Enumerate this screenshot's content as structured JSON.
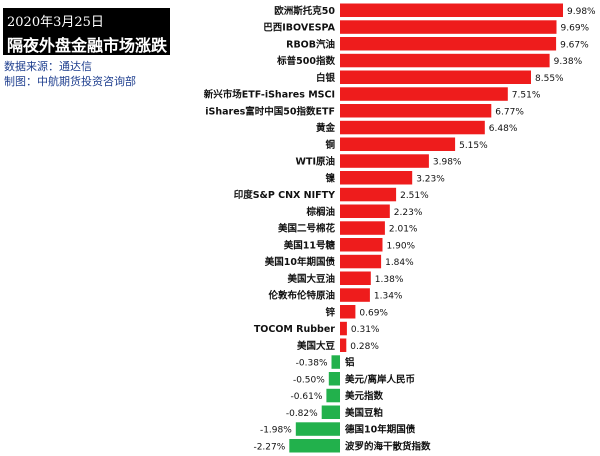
{
  "header": {
    "date": "2020年3月25日",
    "title": "隔夜外盘金融市场涨跌",
    "source": "数据来源：通达信",
    "maker": "制图：中航期货投资咨询部"
  },
  "colors": {
    "positive": "#ee1c1c",
    "negative": "#22b14c"
  },
  "chart_data": {
    "type": "bar",
    "orientation": "horizontal",
    "unit": "%",
    "categories": [
      "欧洲斯托克50",
      "巴西IBOVESPA",
      "RBOB汽油",
      "标普500指数",
      "白银",
      "新兴市场ETF-iShares MSCI",
      "iShares富时中国50指数ETF",
      "黄金",
      "铜",
      "WTI原油",
      "镍",
      "印度S&P CNX NIFTY",
      "棕榈油",
      "美国二号棉花",
      "美国11号糖",
      "美国10年期国债",
      "美国大豆油",
      "伦敦布伦特原油",
      "锌",
      "TOCOM Rubber",
      "美国大豆",
      "铝",
      "美元/离岸人民币",
      "美元指数",
      "美国豆粕",
      "德国10年期国债",
      "波罗的海干散货指数"
    ],
    "values": [
      9.98,
      9.69,
      9.67,
      9.38,
      8.55,
      7.51,
      6.77,
      6.48,
      5.15,
      3.98,
      3.23,
      2.51,
      2.23,
      2.01,
      1.9,
      1.84,
      1.38,
      1.34,
      0.69,
      0.31,
      0.28,
      -0.38,
      -0.5,
      -0.61,
      -0.82,
      -1.98,
      -2.27
    ],
    "labels": [
      "9.98%",
      "9.69%",
      "9.67%",
      "9.38%",
      "8.55%",
      "7.51%",
      "6.77%",
      "6.48%",
      "5.15%",
      "3.98%",
      "3.23%",
      "2.51%",
      "2.23%",
      "2.01%",
      "1.90%",
      "1.84%",
      "1.38%",
      "1.34%",
      "0.69%",
      "0.31%",
      "0.28%",
      "-0.38%",
      "-0.50%",
      "-0.61%",
      "-0.82%",
      "-1.98%",
      "-2.27%"
    ],
    "xlim": [
      -2.27,
      9.98
    ]
  }
}
